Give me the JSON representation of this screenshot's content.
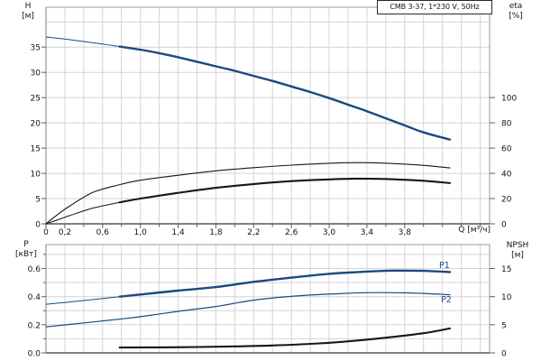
{
  "title_box": {
    "label": "CMB 3-37, 1*230 V, 50Hz"
  },
  "labels": {
    "p1": "P1",
    "p2": "P2"
  },
  "axis_titles": {
    "h": {
      "name": "H",
      "unit": "[м]"
    },
    "eta": {
      "name": "eta",
      "unit": "[%]"
    },
    "q": {
      "name": "Q [м³/ч]"
    },
    "p": {
      "name": "P",
      "unit": "[кВт]"
    },
    "npsh": {
      "name": "NPSH",
      "unit": "[м]"
    }
  },
  "colors": {
    "curve_blue": "#1a4a80",
    "curve_black": "#161616",
    "grid": "#d4d4d4",
    "border": "#999999",
    "axis_zero": "#808080",
    "tick": "#606060",
    "text": "#141414",
    "background": "#ffffff"
  },
  "chart_data": [
    {
      "type": "line",
      "id": "hq-eta",
      "title": "CMB 3-37, 1*230 V, 50Hz",
      "xlabel": "Q [м³/ч]",
      "ylabel_left": "H [м]",
      "ylabel_right": "eta [%]",
      "xlim": [
        0,
        4.7
      ],
      "ylim_left": [
        0,
        42.9
      ],
      "ylim_right": [
        0,
        100
      ],
      "right_axis_alignment": "eta 20 % gridline coincides with H 5 м gridline",
      "grid": "on",
      "x_tick_labels": [
        {
          "q": 0,
          "label": "0"
        },
        {
          "q": 0.2,
          "label": "0,2"
        },
        {
          "q": 0.6,
          "label": "0,6"
        },
        {
          "q": 1.0,
          "label": "1,0"
        },
        {
          "q": 1.4,
          "label": "1,4"
        },
        {
          "q": 1.8,
          "label": "1,8"
        },
        {
          "q": 2.2,
          "label": "2,2"
        },
        {
          "q": 2.6,
          "label": "2,6"
        },
        {
          "q": 3.0,
          "label": "3,0"
        },
        {
          "q": 3.4,
          "label": "3,4"
        },
        {
          "q": 3.8,
          "label": "3,8"
        }
      ],
      "left_ticks": [
        {
          "v": 0,
          "label": "0"
        },
        {
          "v": 5,
          "label": "5"
        },
        {
          "v": 10,
          "label": "10"
        },
        {
          "v": 15,
          "label": "15"
        },
        {
          "v": 20,
          "label": "20"
        },
        {
          "v": 25,
          "label": "25"
        },
        {
          "v": 30,
          "label": "30"
        },
        {
          "v": 35,
          "label": "35"
        }
      ],
      "right_ticks": [
        {
          "v": 0,
          "label": "0"
        },
        {
          "v": 20,
          "label": "20"
        },
        {
          "v": 40,
          "label": "40"
        },
        {
          "v": 60,
          "label": "60"
        },
        {
          "v": 80,
          "label": "80"
        },
        {
          "v": 100,
          "label": "100"
        }
      ],
      "series": [
        {
          "name": "H",
          "axis": "left",
          "units": "м",
          "color": "blue",
          "bold_from_q": 0.78,
          "points": [
            [
              0,
              37.0
            ],
            [
              0.2,
              36.6
            ],
            [
              0.4,
              36.1
            ],
            [
              0.6,
              35.6
            ],
            [
              0.78,
              35.1
            ],
            [
              1.0,
              34.5
            ],
            [
              1.2,
              33.8
            ],
            [
              1.4,
              33.0
            ],
            [
              1.6,
              32.1
            ],
            [
              1.8,
              31.2
            ],
            [
              2.0,
              30.3
            ],
            [
              2.2,
              29.3
            ],
            [
              2.4,
              28.3
            ],
            [
              2.6,
              27.2
            ],
            [
              2.8,
              26.1
            ],
            [
              3.0,
              24.9
            ],
            [
              3.2,
              23.6
            ],
            [
              3.4,
              22.3
            ],
            [
              3.6,
              20.9
            ],
            [
              3.8,
              19.5
            ],
            [
              4.0,
              18.1
            ],
            [
              4.28,
              16.7
            ]
          ]
        },
        {
          "name": "eta1",
          "axis": "right",
          "units": "%",
          "color": "black",
          "weight": "thin",
          "points": [
            [
              0,
              0
            ],
            [
              0.1,
              6
            ],
            [
              0.25,
              14
            ],
            [
              0.5,
              25
            ],
            [
              0.78,
              31
            ],
            [
              1.0,
              34.5
            ],
            [
              1.4,
              38.5
            ],
            [
              1.8,
              42
            ],
            [
              2.2,
              44.5
            ],
            [
              2.6,
              46.5
            ],
            [
              3.0,
              48
            ],
            [
              3.2,
              48.4
            ],
            [
              3.5,
              48.3
            ],
            [
              3.8,
              47.3
            ],
            [
              4.0,
              46.3
            ],
            [
              4.28,
              44.3
            ]
          ]
        },
        {
          "name": "eta2",
          "axis": "right",
          "units": "%",
          "color": "black",
          "bold_from_q": 0.78,
          "points": [
            [
              0,
              0
            ],
            [
              0.1,
              2.5
            ],
            [
              0.25,
              6.5
            ],
            [
              0.5,
              12.5
            ],
            [
              0.78,
              17
            ],
            [
              1.0,
              20
            ],
            [
              1.4,
              24.5
            ],
            [
              1.8,
              28.5
            ],
            [
              2.2,
              31.5
            ],
            [
              2.6,
              33.8
            ],
            [
              3.0,
              35.2
            ],
            [
              3.3,
              35.8
            ],
            [
              3.6,
              35.5
            ],
            [
              3.8,
              34.9
            ],
            [
              4.0,
              34.1
            ],
            [
              4.28,
              32.3
            ]
          ]
        }
      ]
    },
    {
      "type": "line",
      "id": "power-npsh",
      "xlabel": "Q [м³/ч]",
      "ylabel_left": "P [кВт]",
      "ylabel_right": "NPSH [м]",
      "xlim": [
        0,
        4.7
      ],
      "ylim_left": [
        0,
        0.77
      ],
      "ylim_right": [
        0,
        19.2
      ],
      "grid": "on",
      "left_ticks": [
        {
          "v": 0,
          "label": "0.0"
        },
        {
          "v": 0.2,
          "label": "0.2"
        },
        {
          "v": 0.4,
          "label": "0.4"
        },
        {
          "v": 0.6,
          "label": "0.6"
        }
      ],
      "right_ticks": [
        {
          "v": 0,
          "label": "0"
        },
        {
          "v": 5,
          "label": "5"
        },
        {
          "v": 10,
          "label": "10"
        },
        {
          "v": 15,
          "label": "15"
        }
      ],
      "series": [
        {
          "name": "P1",
          "axis": "left",
          "units": "кВт",
          "color": "blue",
          "bold_from_q": 0.78,
          "points": [
            [
              0,
              0.345
            ],
            [
              0.4,
              0.372
            ],
            [
              0.78,
              0.4
            ],
            [
              1.0,
              0.415
            ],
            [
              1.4,
              0.443
            ],
            [
              1.8,
              0.468
            ],
            [
              2.2,
              0.505
            ],
            [
              2.6,
              0.535
            ],
            [
              3.0,
              0.562
            ],
            [
              3.4,
              0.578
            ],
            [
              3.7,
              0.585
            ],
            [
              4.0,
              0.583
            ],
            [
              4.28,
              0.574
            ]
          ]
        },
        {
          "name": "P2",
          "axis": "left",
          "units": "кВт",
          "color": "blue",
          "weight": "thin",
          "points": [
            [
              0,
              0.185
            ],
            [
              0.4,
              0.213
            ],
            [
              0.78,
              0.24
            ],
            [
              1.0,
              0.257
            ],
            [
              1.4,
              0.295
            ],
            [
              1.8,
              0.33
            ],
            [
              2.2,
              0.375
            ],
            [
              2.6,
              0.402
            ],
            [
              3.0,
              0.418
            ],
            [
              3.4,
              0.428
            ],
            [
              3.8,
              0.427
            ],
            [
              4.0,
              0.423
            ],
            [
              4.28,
              0.413
            ]
          ]
        },
        {
          "name": "NPSH",
          "axis": "right",
          "units": "м",
          "color": "black",
          "weight": "thick",
          "points": [
            [
              0.78,
              0.95
            ],
            [
              1.2,
              0.98
            ],
            [
              1.6,
              1.05
            ],
            [
              2.0,
              1.15
            ],
            [
              2.4,
              1.32
            ],
            [
              2.8,
              1.6
            ],
            [
              3.2,
              2.05
            ],
            [
              3.6,
              2.7
            ],
            [
              4.0,
              3.5
            ],
            [
              4.28,
              4.35
            ]
          ]
        }
      ]
    }
  ]
}
